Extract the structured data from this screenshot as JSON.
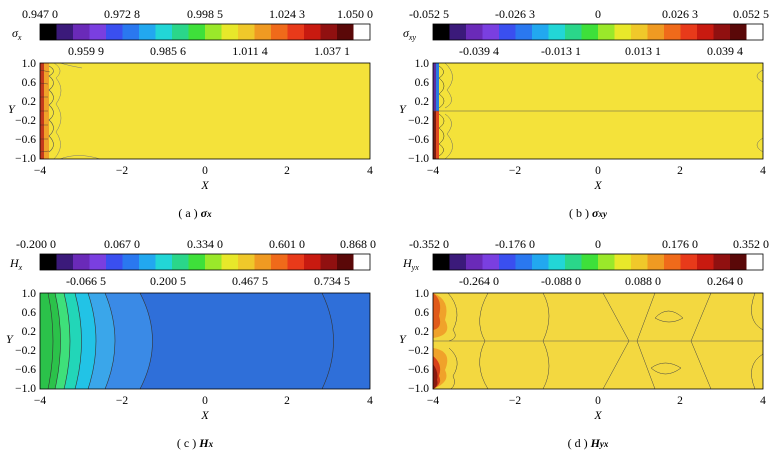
{
  "panels": [
    {
      "id": "a",
      "symbol": "σ",
      "symbol_sub": "x",
      "colorbar_top": [
        "0.947 0",
        "0.972 8",
        "0.998 5",
        "1.024 3",
        "1.050 0"
      ],
      "colorbar_bottom": [
        "0.959 9",
        "0.985 6",
        "1.011 4",
        "1.037 1"
      ],
      "caption_prefix": "( a )",
      "caption_symbol": "σ",
      "caption_sub": "x"
    },
    {
      "id": "b",
      "symbol": "σ",
      "symbol_sub": "xy",
      "colorbar_top": [
        "-0.052 5",
        "-0.026 3",
        "0",
        "0.026 3",
        "0.052 5"
      ],
      "colorbar_bottom": [
        "-0.039 4",
        "-0.013 1",
        "0.013 1",
        "0.039 4"
      ],
      "caption_prefix": "( b )",
      "caption_symbol": "σ",
      "caption_sub": "xy"
    },
    {
      "id": "c",
      "symbol": "H",
      "symbol_sub": "x",
      "colorbar_top": [
        "-0.200 0",
        "0.067 0",
        "0.334 0",
        "0.601 0",
        "0.868 0"
      ],
      "colorbar_bottom": [
        "-0.066 5",
        "0.200 5",
        "0.467 5",
        "0.734 5"
      ],
      "caption_prefix": "( c )",
      "caption_symbol": "H",
      "caption_sub": "x"
    },
    {
      "id": "d",
      "symbol": "H",
      "symbol_sub": "yx",
      "colorbar_top": [
        "-0.352 0",
        "-0.176 0",
        "0",
        "0.176 0",
        "0.352 0"
      ],
      "colorbar_bottom": [
        "-0.264 0",
        "-0.088 0",
        "0.088 0",
        "0.264 0"
      ],
      "caption_prefix": "( d )",
      "caption_symbol": "H",
      "caption_sub": "yx"
    }
  ],
  "axes": {
    "xlabel": "X",
    "ylabel": "Y",
    "xticks": [
      "−4",
      "−2",
      "0",
      "2",
      "4"
    ],
    "yticks": [
      "1.0",
      "0.6",
      "0.2",
      "−0.2",
      "−0.6",
      "−1.0"
    ],
    "xlim": [
      -4,
      4
    ],
    "ylim": [
      -1,
      1
    ]
  },
  "colors": {
    "field_yellow": "#f4e23a",
    "field_blue": "#2f6fd9"
  }
}
